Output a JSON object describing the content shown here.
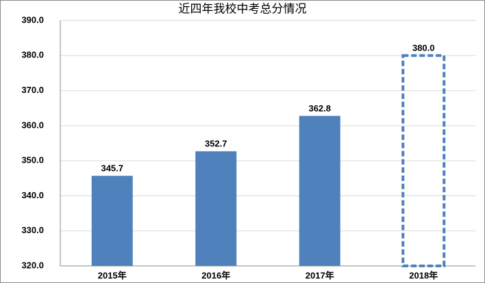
{
  "chart_data": {
    "type": "bar",
    "title": "近四年我校中考总分情况",
    "categories": [
      "2015年",
      "2016年",
      "2017年",
      "2018年"
    ],
    "values": [
      345.7,
      352.7,
      362.8,
      380.0
    ],
    "value_labels": [
      "345.7",
      "352.7",
      "362.8",
      "380.0"
    ],
    "bar_styles": [
      "solid",
      "solid",
      "solid",
      "dashed"
    ],
    "color": "#4f81bd",
    "ylim": [
      320,
      390
    ],
    "yticks": [
      {
        "value": 320,
        "label": "320.0"
      },
      {
        "value": 330,
        "label": "330.0"
      },
      {
        "value": 340,
        "label": "340.0"
      },
      {
        "value": 350,
        "label": "350.0"
      },
      {
        "value": 360,
        "label": "360.0"
      },
      {
        "value": 370,
        "label": "370.0"
      },
      {
        "value": 380,
        "label": "380.0"
      },
      {
        "value": 390,
        "label": "390.0"
      }
    ],
    "grid": true
  }
}
